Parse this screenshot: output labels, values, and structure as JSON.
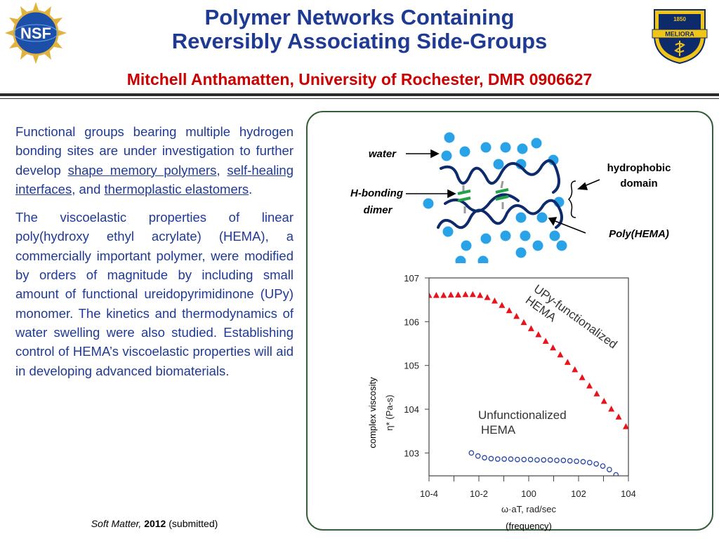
{
  "header": {
    "title_line1": "Polymer Networks Containing",
    "title_line2": "Reversibly Associating Side-Groups",
    "subtitle": "Mitchell Anthamatten, University of Rochester, DMR 0906627",
    "nsf_logo_text": "NSF",
    "rochester_seal_year": "1850",
    "rochester_seal_motto": "MELIORA"
  },
  "body": {
    "p1_pre": "Functional groups bearing multiple hydrogen bonding sites are under investigation to further develop ",
    "p1_link1": "shape memory polymers",
    "p1_sep1": ", ",
    "p1_link2": "self-healing interfaces",
    "p1_sep2": ", and ",
    "p1_link3": "thermoplastic elastomers",
    "p1_end": ".",
    "p2": "The viscoelastic properties of linear poly(hydroxy ethyl acrylate) (HEMA), a commercially important polymer, were modified by orders of magnitude by including small amount of functional ureidopyrimidinone (UPy) monomer. The kinetics and thermodynamics of water swelling were also studied. Establishing control of HEMA’s viscoelastic properties will aid in developing advanced biomaterials."
  },
  "citation": {
    "journal": "Soft Matter,",
    "year": "2012",
    "status": "(submitted)"
  },
  "schematic": {
    "label_water": "water",
    "label_hbond_1": "H-bonding",
    "label_hbond_2": "dimer",
    "label_hydrophobic_1": "hydrophobic",
    "label_hydrophobic_2": "domain",
    "label_poly": "Poly(HEMA)",
    "water_color": "#29a3e8",
    "chain_color": "#0d2a6b",
    "dimer_color": "#22a04a"
  },
  "chart_data": {
    "type": "scatter",
    "log_x": true,
    "log_y": true,
    "xlim": [
      0.0001,
      10000
    ],
    "ylim": [
      300,
      10000000
    ],
    "x_ticks": [
      "10-4",
      "10-2",
      "100",
      "102",
      "104"
    ],
    "y_ticks": [
      "107",
      "106",
      "105",
      "104",
      "103"
    ],
    "xlabel": "ω·aT, rad/sec",
    "xlabel_extra": "(frequency)",
    "ylabel": "η* (Pa-s)",
    "ylabel_extra": "complex viscosity",
    "series": [
      {
        "name": "UPy-functionalized HEMA",
        "label_line1": "UPy-functionalized",
        "label_line2": "HEMA",
        "marker": "filled-triangle",
        "color": "#e8141c",
        "x_log_range": [
          -4.0,
          3.9
        ],
        "y_log": [
          6.6,
          6.6,
          6.6,
          6.61,
          6.61,
          6.62,
          6.62,
          6.6,
          6.55,
          6.47,
          6.37,
          6.25,
          6.12,
          5.98,
          5.84,
          5.7,
          5.55,
          5.4,
          5.24,
          5.07,
          4.9,
          4.72,
          4.53,
          4.35,
          4.18,
          4.0,
          3.82,
          3.6
        ]
      },
      {
        "name": "Unfunctionalized HEMA",
        "label_line1": "Unfunctionalized",
        "label_line2": "HEMA",
        "marker": "open-circle",
        "color": "#2647a8",
        "x_log_range": [
          -2.3,
          3.5
        ],
        "y_log": [
          3.0,
          2.93,
          2.89,
          2.87,
          2.86,
          2.86,
          2.86,
          2.85,
          2.85,
          2.85,
          2.84,
          2.84,
          2.84,
          2.83,
          2.83,
          2.82,
          2.81,
          2.8,
          2.78,
          2.75,
          2.7,
          2.62,
          2.5
        ]
      }
    ]
  }
}
